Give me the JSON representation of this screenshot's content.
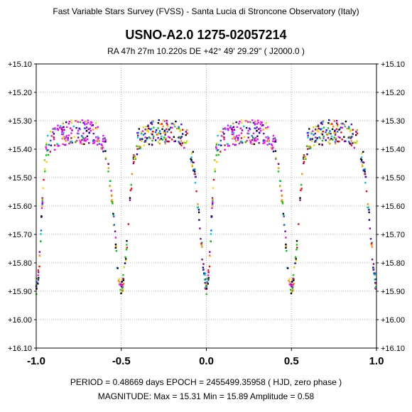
{
  "header": {
    "survey": "Fast Variable Stars Survey (FVSS) - Santa Lucia di Stroncone Observatory (Italy)",
    "star": "USNO-A2.0  1275-02057214",
    "coords": "RA  47h 27m 10.220s    DE  +42° 49' 29.29\"     ( J2000.0 )"
  },
  "footer": {
    "line1": "PERIOD = 0.48669 days     EPOCH = 2455499.35958   ( HJD, zero phase )",
    "line2": "MAGNITUDE:  Max = 15.31    Min = 15.89    Amplitude = 0.58"
  },
  "colors": [
    "#ff00ff",
    "#ff0000",
    "#ff8800",
    "#ffd000",
    "#c8e000",
    "#00cc00",
    "#00c8c8",
    "#0066ff",
    "#0000aa",
    "#880088",
    "#6600cc",
    "#000000"
  ],
  "chart_data": {
    "type": "scatter",
    "title": "USNO-A2.0  1275-02057214",
    "xlabel": "",
    "ylabel": "",
    "xlim": [
      -1.0,
      1.0
    ],
    "ylim": [
      15.1,
      16.1
    ],
    "y_inverted": true,
    "grid": "dashed",
    "x_ticks": [
      "-1.0",
      "-0.5",
      "0.0",
      "0.5",
      "1.0"
    ],
    "y_ticks_left": [
      "+15.10",
      "+15.20",
      "+15.30",
      "+15.40",
      "+15.50",
      "+15.60",
      "+15.70",
      "+15.80",
      "+15.90",
      "+16.00",
      "+16.10"
    ],
    "y_ticks_right": [
      "+15.10",
      "+15.20",
      "+15.30",
      "+15.40",
      "+15.50",
      "+15.60",
      "+15.70",
      "+15.80",
      "+15.90",
      "+16.00",
      "+16.10"
    ],
    "period": 0.48669,
    "epoch": 2455499.35958,
    "max_mag": 15.31,
    "min_mag": 15.89,
    "amplitude": 0.58,
    "light_curve": [
      [
        0.0,
        15.9
      ],
      [
        0.01,
        15.86
      ],
      [
        0.02,
        15.78
      ],
      [
        0.03,
        15.66
      ],
      [
        0.04,
        15.55
      ],
      [
        0.05,
        15.45
      ],
      [
        0.065,
        15.39
      ],
      [
        0.08,
        15.37
      ],
      [
        0.11,
        15.36
      ],
      [
        0.15,
        15.35
      ],
      [
        0.2,
        15.34
      ],
      [
        0.25,
        15.34
      ],
      [
        0.3,
        15.34
      ],
      [
        0.35,
        15.35
      ],
      [
        0.385,
        15.37
      ],
      [
        0.405,
        15.4
      ],
      [
        0.42,
        15.45
      ],
      [
        0.435,
        15.52
      ],
      [
        0.45,
        15.62
      ],
      [
        0.465,
        15.72
      ],
      [
        0.48,
        15.82
      ],
      [
        0.49,
        15.87
      ],
      [
        0.5,
        15.89
      ],
      [
        0.51,
        15.87
      ],
      [
        0.52,
        15.82
      ],
      [
        0.535,
        15.72
      ],
      [
        0.55,
        15.6
      ],
      [
        0.565,
        15.49
      ],
      [
        0.58,
        15.41
      ],
      [
        0.6,
        15.37
      ],
      [
        0.65,
        15.35
      ],
      [
        0.7,
        15.34
      ],
      [
        0.75,
        15.34
      ],
      [
        0.8,
        15.34
      ],
      [
        0.85,
        15.35
      ],
      [
        0.89,
        15.37
      ],
      [
        0.91,
        15.4
      ],
      [
        0.93,
        15.47
      ],
      [
        0.945,
        15.56
      ],
      [
        0.96,
        15.66
      ],
      [
        0.975,
        15.76
      ],
      [
        0.99,
        15.85
      ],
      [
        1.0,
        15.9
      ]
    ]
  }
}
